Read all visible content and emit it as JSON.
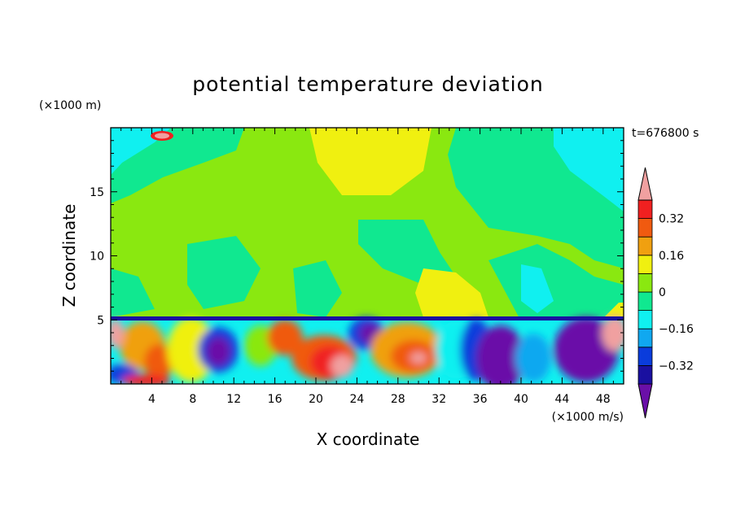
{
  "chart_data": {
    "type": "heatmap",
    "title": "potential temperature deviation",
    "xlabel": "X coordinate",
    "ylabel": "Z coordinate",
    "x_unit": "(×1000 m/s)",
    "y_unit": "(×1000 m)",
    "time_label": "t=676800 s",
    "xlim": [
      0,
      50
    ],
    "ylim": [
      0,
      20
    ],
    "x_ticks": [
      4,
      8,
      12,
      16,
      20,
      24,
      28,
      32,
      36,
      40,
      44,
      48
    ],
    "y_ticks": [
      5,
      10,
      15
    ],
    "colorbar": {
      "levels": [
        -0.4,
        -0.32,
        -0.24,
        -0.16,
        -0.08,
        0,
        0.08,
        0.16,
        0.24,
        0.32,
        0.4
      ],
      "tick_labels": [
        "0.32",
        "0.16",
        "0",
        "−0.16",
        "−0.32"
      ],
      "tick_values": [
        0.32,
        0.16,
        0,
        -0.16,
        -0.32
      ],
      "colors": [
        "#6a0fa8",
        "#1a10a0",
        "#0a3cdc",
        "#10a8f0",
        "#10f0f0",
        "#10e890",
        "#8ae810",
        "#f0f010",
        "#f0a010",
        "#f05a10",
        "#f02020",
        "#f0a0a0"
      ]
    },
    "grid": false
  }
}
